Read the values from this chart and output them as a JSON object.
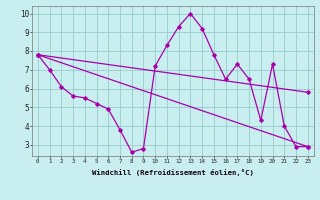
{
  "xlabel": "Windchill (Refroidissement éolien,°C)",
  "bg_color": "#c8eef0",
  "line_color": "#aa00aa",
  "grid_color": "#99cccc",
  "xlim": [
    -0.5,
    23.5
  ],
  "ylim": [
    2.4,
    10.4
  ],
  "xticks": [
    0,
    1,
    2,
    3,
    4,
    5,
    6,
    7,
    8,
    9,
    10,
    11,
    12,
    13,
    14,
    15,
    16,
    17,
    18,
    19,
    20,
    21,
    22,
    23
  ],
  "yticks": [
    3,
    4,
    5,
    6,
    7,
    8,
    9,
    10
  ],
  "lines_data": [
    {
      "x": [
        0,
        1,
        2,
        3,
        4,
        5,
        6,
        7,
        8,
        9,
        10,
        11,
        12,
        13,
        14,
        15,
        16,
        17,
        18,
        19,
        20,
        21,
        22,
        23
      ],
      "y": [
        7.8,
        7.0,
        6.1,
        5.6,
        5.5,
        5.2,
        4.9,
        3.8,
        2.6,
        2.8,
        7.2,
        8.3,
        9.3,
        10.0,
        9.2,
        7.8,
        6.5,
        7.3,
        6.5,
        4.3,
        7.3,
        4.0,
        2.9,
        2.9
      ]
    },
    {
      "x": [
        0,
        23
      ],
      "y": [
        7.8,
        5.8
      ]
    },
    {
      "x": [
        0,
        23
      ],
      "y": [
        7.8,
        2.9
      ]
    }
  ]
}
